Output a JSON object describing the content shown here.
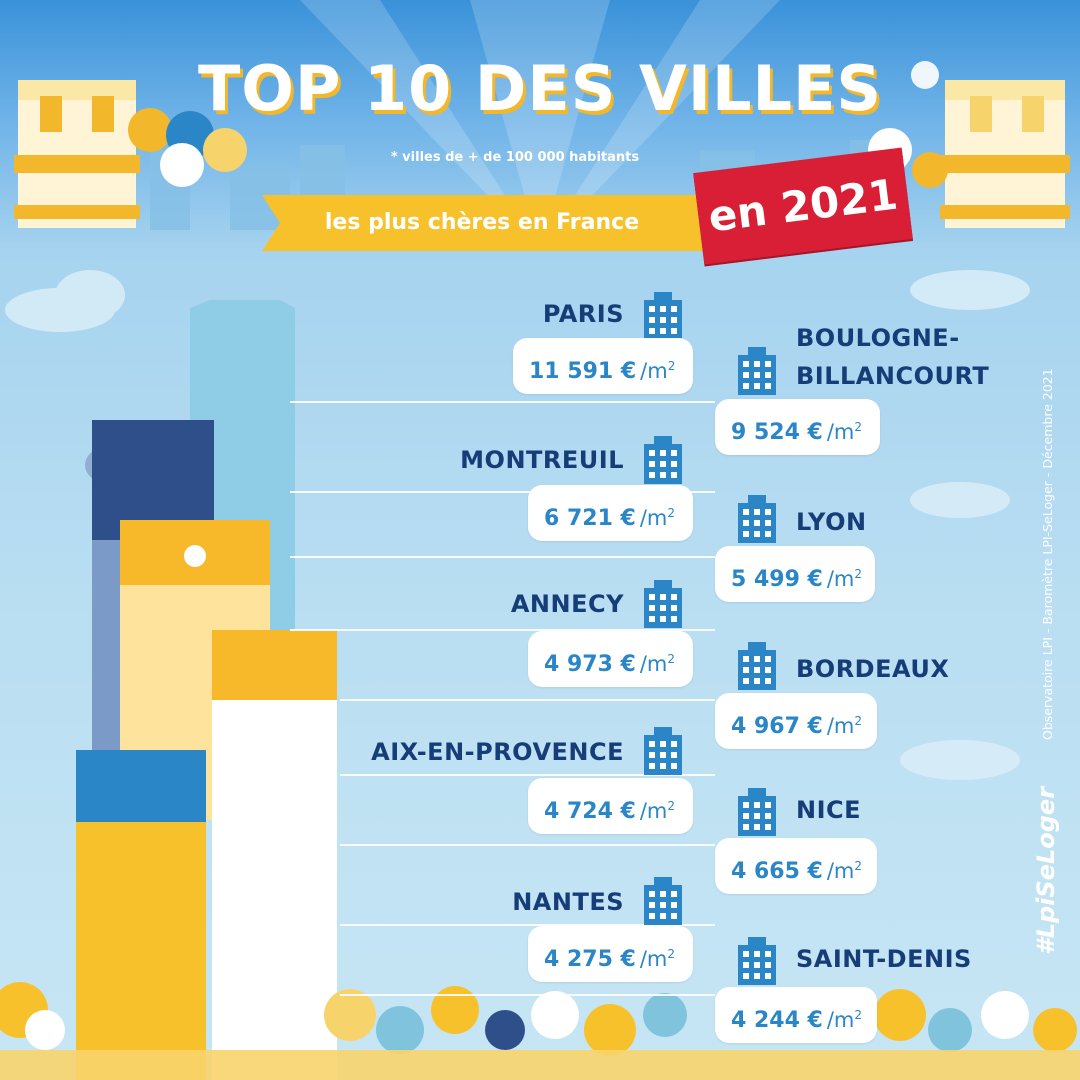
{
  "header": {
    "title": "TOP 10 DES VILLES",
    "note": "* villes de + de 100 000 habitants",
    "subtitle": "les plus chères en France",
    "year_badge": "en 2021"
  },
  "unit": {
    "prefix": "/m",
    "exponent": "2"
  },
  "cities": [
    {
      "name": "PARIS",
      "price": "11 591 €"
    },
    {
      "name": "BOULOGNE-",
      "name_line2": "BILLANCOURT",
      "price": "9 524 €"
    },
    {
      "name": "MONTREUIL",
      "price": "6 721 €"
    },
    {
      "name": "LYON",
      "price": "5 499 €"
    },
    {
      "name": "ANNECY",
      "price": "4 973 €"
    },
    {
      "name": "BORDEAUX",
      "price": "4 967 €"
    },
    {
      "name": "AIX-EN-PROVENCE",
      "price": "4 724 €"
    },
    {
      "name": "NICE",
      "price": "4 665 €"
    },
    {
      "name": "NANTES",
      "price": "4 275 €"
    },
    {
      "name": "SAINT-DENIS",
      "price": "4 244 €"
    }
  ],
  "source": "Observatoire LPI - Baromètre LPI-SeLoger - Décembre 2021",
  "hashtag": "#LpiSeLoger",
  "colors": {
    "sky": "#6fb3e8",
    "navy": "#163d78",
    "price_blue": "#2a86c6",
    "yellow": "#f7c12b",
    "red": "#d81f36"
  }
}
